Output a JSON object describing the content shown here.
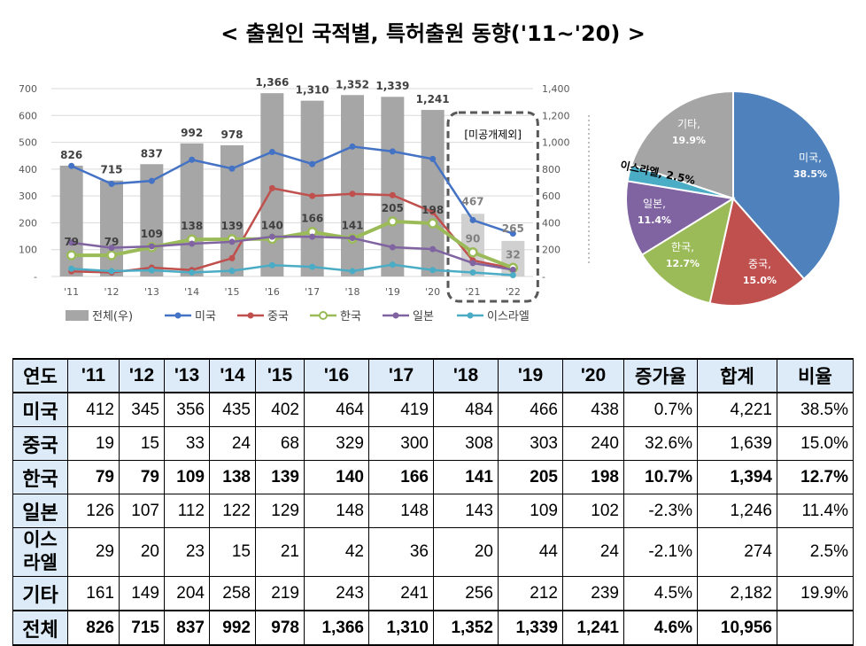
{
  "title": "< 출원인 국적별, 특허출원 동향('11~'20) >",
  "chart_data": [
    {
      "type": "bar+line",
      "categories": [
        "'11",
        "'12",
        "'13",
        "'14",
        "'15",
        "'16",
        "'17",
        "'18",
        "'19",
        "'20",
        "'21",
        "'22"
      ],
      "y_left_ticks": [
        "700",
        "600",
        "500",
        "400",
        "300",
        "200",
        "100",
        "-"
      ],
      "y_left_range": [
        0,
        700
      ],
      "y_right_ticks": [
        "1,400",
        "1,200",
        "1,000",
        "800",
        "600",
        "400",
        "200",
        "-"
      ],
      "y_right_range": [
        0,
        1400
      ],
      "annotation": "[미공개제외]",
      "bar_series": {
        "name": "전체(우)",
        "axis": "right",
        "color": "#a6a6a6",
        "values": [
          826,
          715,
          837,
          992,
          978,
          1366,
          1310,
          1352,
          1339,
          1241,
          467,
          265
        ]
      },
      "line_series": [
        {
          "name": "미국",
          "color": "#4472c4",
          "values": [
            412,
            345,
            356,
            435,
            402,
            464,
            419,
            484,
            466,
            438,
            210,
            160
          ]
        },
        {
          "name": "중국",
          "color": "#c0504d",
          "values": [
            19,
            15,
            33,
            24,
            68,
            329,
            300,
            308,
            303,
            240,
            60,
            30
          ]
        },
        {
          "name": "한국",
          "color": "#9bbb59",
          "values": [
            79,
            79,
            109,
            138,
            139,
            140,
            166,
            141,
            205,
            198,
            90,
            32
          ]
        },
        {
          "name": "일본",
          "color": "#8064a2",
          "values": [
            126,
            107,
            112,
            122,
            129,
            148,
            148,
            143,
            109,
            102,
            50,
            25
          ]
        },
        {
          "name": "이스라엘",
          "color": "#4bacc6",
          "values": [
            29,
            20,
            23,
            15,
            21,
            42,
            36,
            20,
            44,
            24,
            15,
            5
          ]
        }
      ],
      "total_labels": [
        "826",
        "715",
        "837",
        "992",
        "978",
        "1,366",
        "1,310",
        "1,352",
        "1,339",
        "1,241",
        "467",
        "265"
      ],
      "korea_labels": [
        "79",
        "79",
        "109",
        "138",
        "139",
        "140",
        "166",
        "141",
        "205",
        "198",
        "90",
        "32"
      ]
    },
    {
      "type": "pie",
      "slices": [
        {
          "name": "미국,",
          "pct": "38.5%",
          "value": 38.5,
          "color": "#4f81bd"
        },
        {
          "name": "중국,",
          "pct": "15.0%",
          "value": 15.0,
          "color": "#c0504d"
        },
        {
          "name": "한국,",
          "pct": "12.7%",
          "value": 12.7,
          "color": "#9bbb59"
        },
        {
          "name": "일본,",
          "pct": "11.4%",
          "value": 11.4,
          "color": "#8064a2"
        },
        {
          "name": "이스라엘,",
          "pct": "2.5%",
          "value": 2.5,
          "color": "#4bacc6"
        },
        {
          "name": "기타,",
          "pct": "19.9%",
          "value": 19.9,
          "color": "#a5a5a5"
        }
      ]
    }
  ],
  "table": {
    "headers": [
      "연도",
      "'11",
      "'12",
      "'13",
      "'14",
      "'15",
      "'16",
      "'17",
      "'18",
      "'19",
      "'20",
      "증가율",
      "합계",
      "비율"
    ],
    "rows": [
      {
        "label": "미국",
        "cells": [
          "412",
          "345",
          "356",
          "435",
          "402",
          "464",
          "419",
          "484",
          "466",
          "438",
          "0.7%",
          "4,221",
          "38.5%"
        ]
      },
      {
        "label": "중국",
        "cells": [
          "19",
          "15",
          "33",
          "24",
          "68",
          "329",
          "300",
          "308",
          "303",
          "240",
          "32.6%",
          "1,639",
          "15.0%"
        ]
      },
      {
        "label": "한국",
        "cells": [
          "79",
          "79",
          "109",
          "138",
          "139",
          "140",
          "166",
          "141",
          "205",
          "198",
          "10.7%",
          "1,394",
          "12.7%"
        ]
      },
      {
        "label": "일본",
        "cells": [
          "126",
          "107",
          "112",
          "122",
          "129",
          "148",
          "148",
          "143",
          "109",
          "102",
          "-2.3%",
          "1,246",
          "11.4%"
        ]
      },
      {
        "label": "이스라엘",
        "label_lines": [
          "이스",
          "라엘"
        ],
        "cells": [
          "29",
          "20",
          "23",
          "15",
          "21",
          "42",
          "36",
          "20",
          "44",
          "24",
          "-2.1%",
          "274",
          "2.5%"
        ]
      },
      {
        "label": "기타",
        "cells": [
          "161",
          "149",
          "204",
          "258",
          "219",
          "243",
          "241",
          "256",
          "212",
          "239",
          "4.5%",
          "2,182",
          "19.9%"
        ]
      },
      {
        "label": "전체",
        "cells": [
          "826",
          "715",
          "837",
          "992",
          "978",
          "1,366",
          "1,310",
          "1,352",
          "1,339",
          "1,241",
          "4.6%",
          "10,956",
          ""
        ]
      }
    ]
  }
}
